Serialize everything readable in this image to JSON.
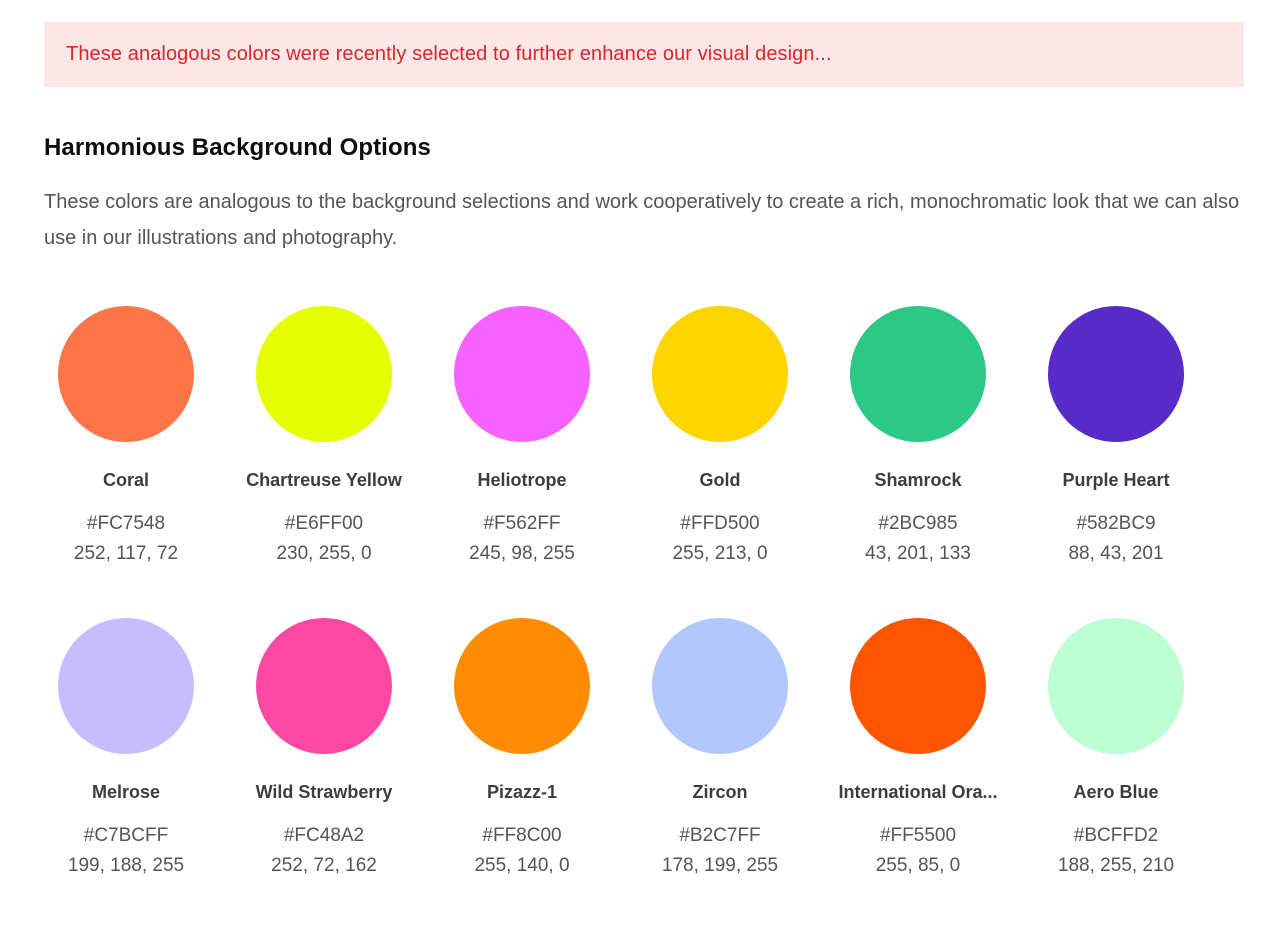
{
  "notice": {
    "text": "These analogous colors were recently selected to further enhance our visual design...",
    "background": "#fce6e6",
    "text_color": "#d8262b"
  },
  "section": {
    "title": "Harmonious Background Options",
    "description": "These colors are analogous to the background selections and work cooperatively to create a rich, monochromatic look that we can also use in our illustrations and photography."
  },
  "swatches": [
    {
      "name": "Coral",
      "hex": "#FC7548",
      "rgb": "252, 117, 72"
    },
    {
      "name": "Chartreuse Yellow",
      "hex": "#E6FF00",
      "rgb": "230, 255, 0"
    },
    {
      "name": "Heliotrope",
      "hex": "#F562FF",
      "rgb": "245, 98, 255"
    },
    {
      "name": "Gold",
      "hex": "#FFD500",
      "rgb": "255, 213, 0"
    },
    {
      "name": "Shamrock",
      "hex": "#2BC985",
      "rgb": "43, 201, 133"
    },
    {
      "name": "Purple Heart",
      "hex": "#582BC9",
      "rgb": "88, 43, 201"
    },
    {
      "name": "Melrose",
      "hex": "#C7BCFF",
      "rgb": "199, 188, 255"
    },
    {
      "name": "Wild Strawberry",
      "hex": "#FC48A2",
      "rgb": "252, 72, 162"
    },
    {
      "name": "Pizazz-1",
      "hex": "#FF8C00",
      "rgb": "255, 140, 0"
    },
    {
      "name": "Zircon",
      "hex": "#B2C7FF",
      "rgb": "178, 199, 255"
    },
    {
      "name": "International Ora...",
      "hex": "#FF5500",
      "rgb": "255, 85, 0"
    },
    {
      "name": "Aero Blue",
      "hex": "#BCFFD2",
      "rgb": "188, 255, 210"
    }
  ]
}
